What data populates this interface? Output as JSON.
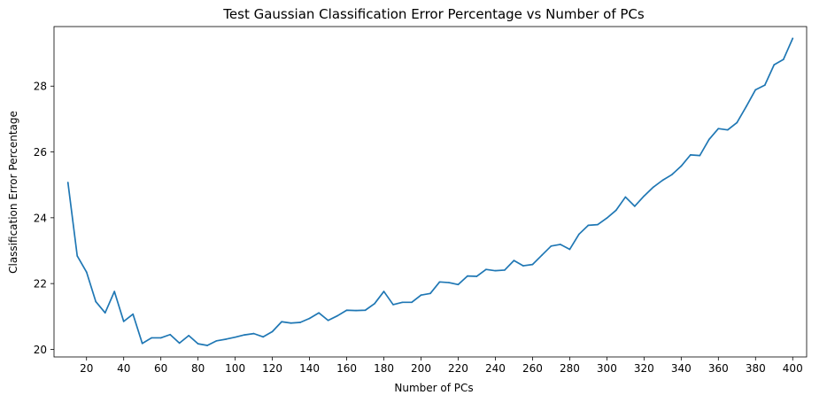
{
  "chart_data": {
    "type": "line",
    "title": "Test Gaussian Classification Error Percentage vs Number of PCs",
    "xlabel": "Number of PCs",
    "ylabel": "Classification Error Percentage",
    "xlim": [
      2.5,
      407.5
    ],
    "ylim": [
      19.77,
      29.81
    ],
    "x_ticks": [
      20,
      40,
      60,
      80,
      100,
      120,
      140,
      160,
      180,
      200,
      220,
      240,
      260,
      280,
      300,
      320,
      340,
      360,
      380,
      400
    ],
    "y_ticks": [
      20,
      22,
      24,
      26,
      28
    ],
    "grid": false,
    "line_color": "#1f77b4",
    "series": [
      {
        "x": [
          10,
          15,
          20,
          25,
          30,
          35,
          40,
          45,
          50,
          55,
          60,
          65,
          70,
          75,
          80,
          85,
          90,
          95,
          100,
          105,
          110,
          115,
          120,
          125,
          130,
          135,
          140,
          145,
          150,
          155,
          160,
          165,
          170,
          175,
          180,
          185,
          190,
          195,
          200,
          205,
          210,
          215,
          220,
          225,
          230,
          235,
          240,
          245,
          250,
          255,
          260,
          265,
          270,
          275,
          280,
          285,
          290,
          295,
          300,
          305,
          310,
          315,
          320,
          325,
          330,
          335,
          340,
          345,
          350,
          355,
          360,
          365,
          370,
          375,
          380,
          385,
          390,
          395,
          400
        ],
        "values": [
          25.07,
          22.84,
          22.35,
          21.45,
          21.11,
          21.76,
          20.85,
          21.07,
          20.18,
          20.35,
          20.35,
          20.45,
          20.19,
          20.42,
          20.17,
          20.12,
          20.26,
          20.31,
          20.37,
          20.44,
          20.48,
          20.38,
          20.54,
          20.84,
          20.8,
          20.82,
          20.94,
          21.11,
          20.88,
          21.02,
          21.19,
          21.18,
          21.19,
          21.39,
          21.76,
          21.36,
          21.43,
          21.43,
          21.65,
          21.7,
          22.05,
          22.03,
          21.97,
          22.23,
          22.22,
          22.43,
          22.39,
          22.41,
          22.7,
          22.54,
          22.58,
          22.86,
          23.14,
          23.19,
          23.04,
          23.5,
          23.77,
          23.79,
          23.99,
          24.23,
          24.63,
          24.35,
          24.66,
          24.93,
          25.14,
          25.31,
          25.57,
          25.91,
          25.89,
          26.38,
          26.71,
          26.67,
          26.89,
          27.38,
          27.89,
          28.03,
          28.65,
          28.81,
          29.45
        ]
      }
    ]
  }
}
